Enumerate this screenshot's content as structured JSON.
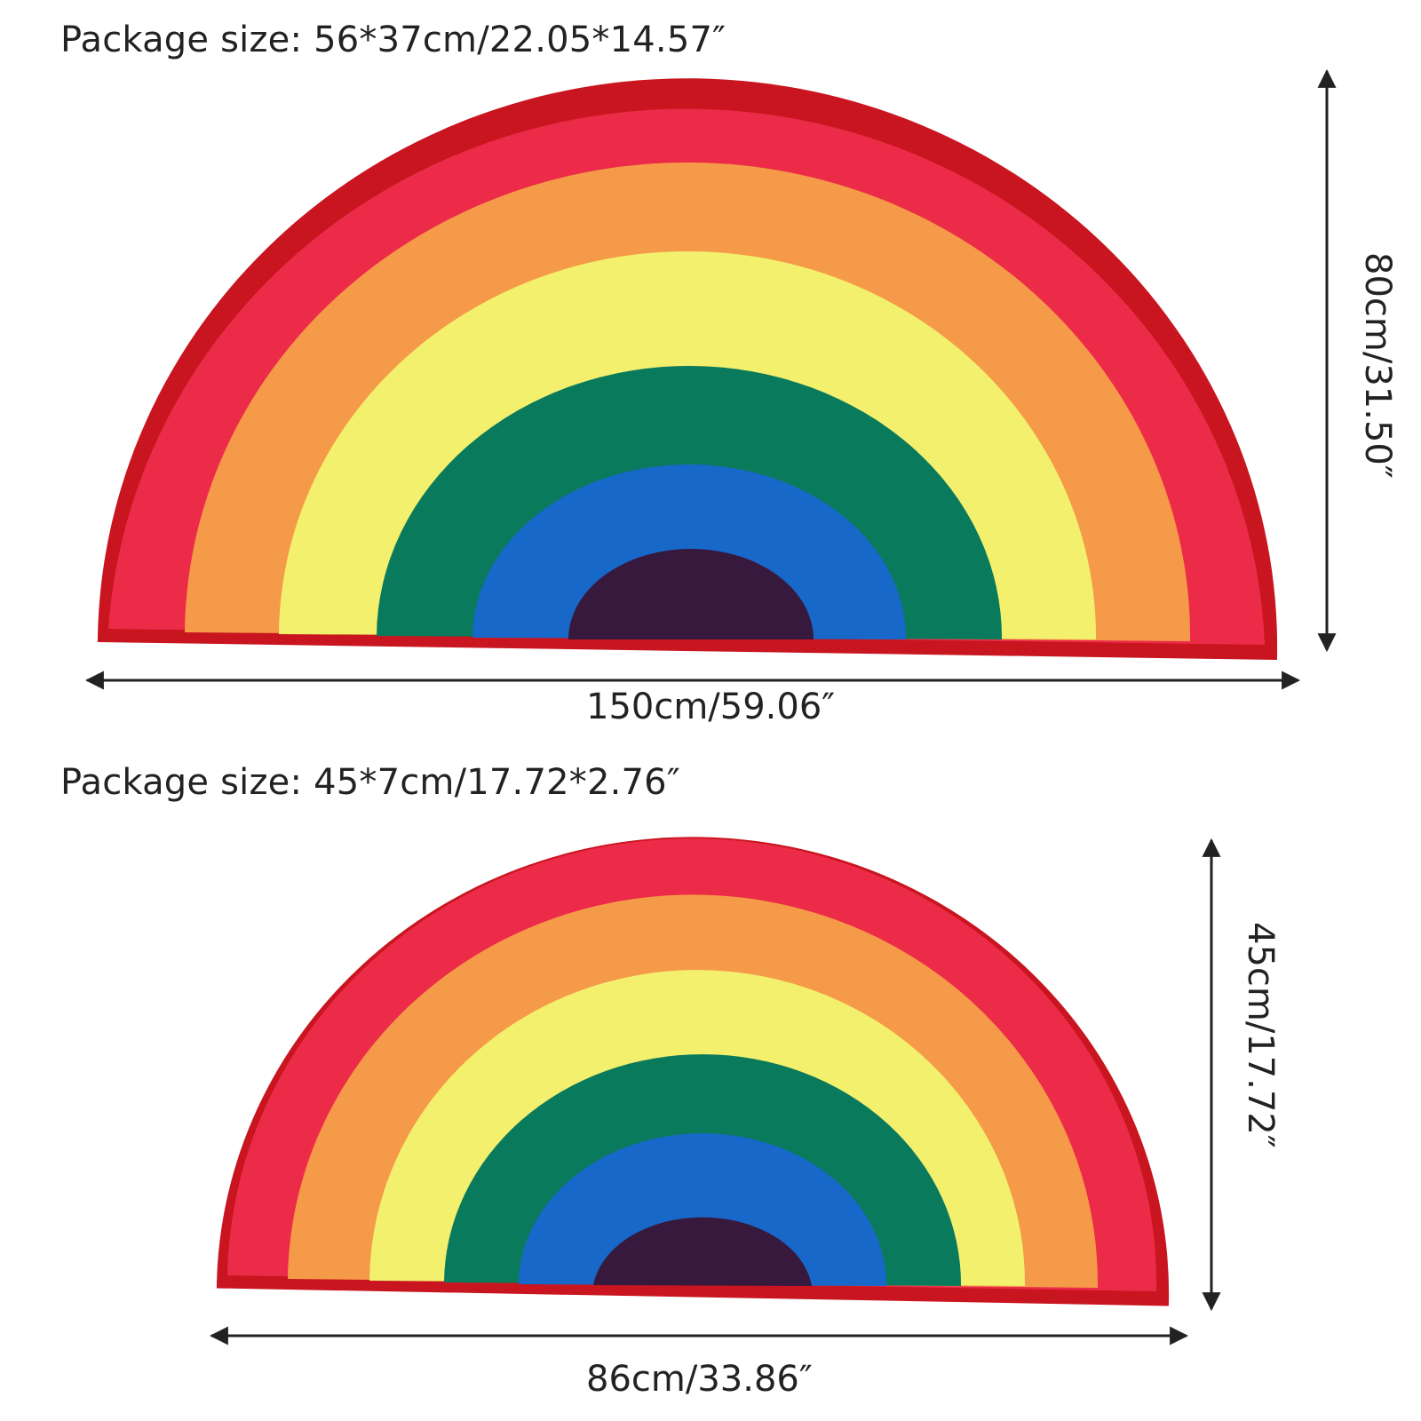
{
  "large_rug": {
    "package_size": "Package size: 56*37cm/22.05*14.57″",
    "width_label": "150cm/59.06″",
    "height_label": "80cm/31.50″"
  },
  "small_rug": {
    "package_size": "Package size: 45*7cm/17.72*2.76″",
    "width_label": "86cm/33.86″",
    "height_label": "45cm/17.72″"
  },
  "colors": {
    "border": "#c8151f",
    "red": "#ec2b48",
    "orange": "#f59a48",
    "yellow": "#f3f06e",
    "green": "#0a7a5c",
    "blue": "#1768c9",
    "purple": "#37193d",
    "arrow": "#222222"
  }
}
